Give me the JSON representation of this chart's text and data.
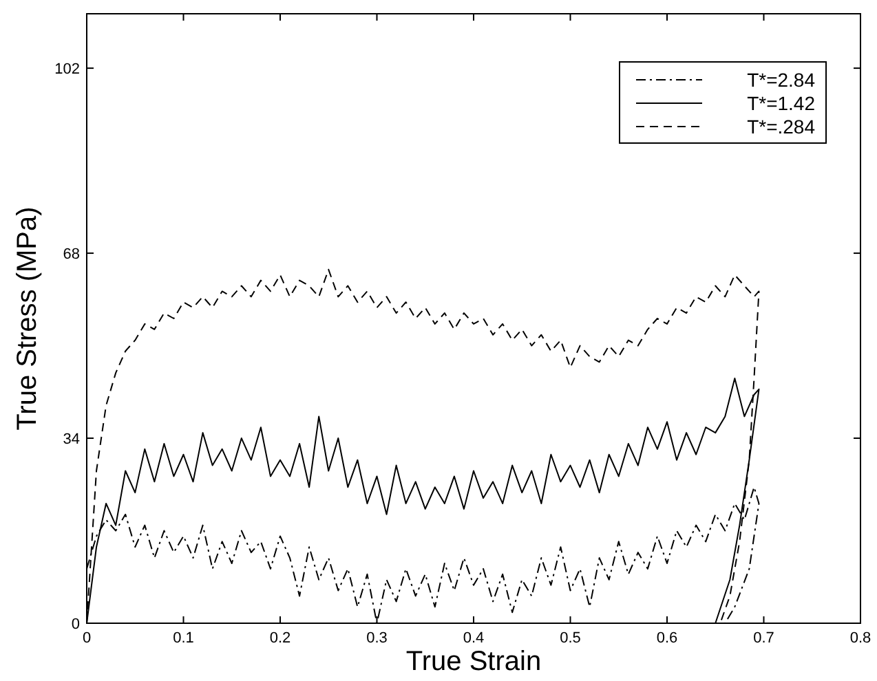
{
  "chart_data": {
    "type": "line",
    "xlabel": "True Strain",
    "ylabel": "True Stress (MPa)",
    "xlim": [
      0,
      0.8
    ],
    "xticks": [
      0,
      0.1,
      0.2,
      0.3,
      0.4,
      0.5,
      0.6,
      0.7,
      0.8
    ],
    "ylim": [
      0,
      112
    ],
    "yticks": [
      0,
      34,
      68,
      102
    ],
    "grid": false,
    "legend": "top right",
    "series": [
      {
        "name": "T*=2.84",
        "color": "#000000",
        "line_style": "dashdot",
        "x": [
          0,
          0.01,
          0.02,
          0.03,
          0.04,
          0.05,
          0.06,
          0.07,
          0.08,
          0.09,
          0.1,
          0.11,
          0.12,
          0.13,
          0.14,
          0.15,
          0.16,
          0.17,
          0.18,
          0.19,
          0.2,
          0.21,
          0.22,
          0.23,
          0.24,
          0.25,
          0.26,
          0.27,
          0.28,
          0.29,
          0.3,
          0.31,
          0.32,
          0.33,
          0.34,
          0.35,
          0.36,
          0.37,
          0.38,
          0.39,
          0.4,
          0.41,
          0.42,
          0.43,
          0.44,
          0.45,
          0.46,
          0.47,
          0.48,
          0.49,
          0.5,
          0.51,
          0.52,
          0.53,
          0.54,
          0.55,
          0.56,
          0.57,
          0.58,
          0.59,
          0.6,
          0.61,
          0.62,
          0.63,
          0.64,
          0.65,
          0.66,
          0.67,
          0.68,
          0.69,
          0.695,
          0.685,
          0.67,
          0.66
        ],
        "values": [
          10,
          16,
          19,
          17,
          20,
          14,
          18,
          12,
          17,
          13,
          16,
          12,
          18,
          10,
          15,
          11,
          17,
          13,
          15,
          10,
          16,
          12,
          5,
          14,
          8,
          12,
          6,
          10,
          3,
          9,
          0,
          8,
          4,
          10,
          5,
          9,
          3,
          11,
          6,
          12,
          7,
          10,
          4,
          9,
          2,
          8,
          5,
          12,
          7,
          14,
          6,
          10,
          3,
          12,
          8,
          15,
          9,
          13,
          10,
          16,
          11,
          17,
          14,
          18,
          15,
          20,
          17,
          22,
          19,
          25,
          22,
          10,
          3,
          0
        ]
      },
      {
        "name": "T*=1.42",
        "color": "#000000",
        "line_style": "solid",
        "x": [
          0,
          0.01,
          0.02,
          0.03,
          0.04,
          0.05,
          0.06,
          0.07,
          0.08,
          0.09,
          0.1,
          0.11,
          0.12,
          0.13,
          0.14,
          0.15,
          0.16,
          0.17,
          0.18,
          0.19,
          0.2,
          0.21,
          0.22,
          0.23,
          0.24,
          0.25,
          0.26,
          0.27,
          0.28,
          0.29,
          0.3,
          0.31,
          0.32,
          0.33,
          0.34,
          0.35,
          0.36,
          0.37,
          0.38,
          0.39,
          0.4,
          0.41,
          0.42,
          0.43,
          0.44,
          0.45,
          0.46,
          0.47,
          0.48,
          0.49,
          0.5,
          0.51,
          0.52,
          0.53,
          0.54,
          0.55,
          0.56,
          0.57,
          0.58,
          0.59,
          0.6,
          0.61,
          0.62,
          0.63,
          0.64,
          0.65,
          0.66,
          0.67,
          0.68,
          0.69,
          0.695,
          0.685,
          0.675,
          0.665,
          0.65
        ],
        "values": [
          0,
          14,
          22,
          18,
          28,
          24,
          32,
          26,
          33,
          27,
          31,
          26,
          35,
          29,
          32,
          28,
          34,
          30,
          36,
          27,
          30,
          27,
          33,
          25,
          38,
          28,
          34,
          25,
          30,
          22,
          27,
          20,
          29,
          22,
          26,
          21,
          25,
          22,
          27,
          21,
          28,
          23,
          26,
          22,
          29,
          24,
          28,
          22,
          31,
          26,
          29,
          25,
          30,
          24,
          31,
          27,
          33,
          29,
          36,
          32,
          37,
          30,
          35,
          31,
          36,
          35,
          38,
          45,
          38,
          42,
          43,
          30,
          18,
          8,
          0
        ]
      },
      {
        "name": "T*=.284",
        "color": "#000000",
        "line_style": "dashed",
        "x": [
          0,
          0.01,
          0.02,
          0.03,
          0.04,
          0.05,
          0.06,
          0.07,
          0.08,
          0.09,
          0.1,
          0.11,
          0.12,
          0.13,
          0.14,
          0.15,
          0.16,
          0.17,
          0.18,
          0.19,
          0.2,
          0.21,
          0.22,
          0.23,
          0.24,
          0.25,
          0.26,
          0.27,
          0.28,
          0.29,
          0.3,
          0.31,
          0.32,
          0.33,
          0.34,
          0.35,
          0.36,
          0.37,
          0.38,
          0.39,
          0.4,
          0.41,
          0.42,
          0.43,
          0.44,
          0.45,
          0.46,
          0.47,
          0.48,
          0.49,
          0.5,
          0.51,
          0.52,
          0.53,
          0.54,
          0.55,
          0.56,
          0.57,
          0.58,
          0.59,
          0.6,
          0.61,
          0.62,
          0.63,
          0.64,
          0.65,
          0.66,
          0.67,
          0.68,
          0.69,
          0.695,
          0.69,
          0.685,
          0.675,
          0.665,
          0.655
        ],
        "values": [
          0,
          28,
          40,
          46,
          50,
          52,
          55,
          54,
          57,
          56,
          59,
          58,
          60,
          58,
          61,
          60,
          62,
          60,
          63,
          61,
          64,
          60,
          63,
          62,
          60,
          65,
          60,
          62,
          59,
          61,
          58,
          60,
          57,
          59,
          56,
          58,
          55,
          57,
          54,
          57,
          55,
          56,
          53,
          55,
          52,
          54,
          51,
          53,
          50,
          52,
          47,
          51,
          49,
          48,
          51,
          49,
          52,
          51,
          54,
          56,
          55,
          58,
          57,
          60,
          59,
          62,
          60,
          64,
          62,
          60,
          61,
          45,
          30,
          15,
          5,
          0
        ]
      }
    ]
  }
}
